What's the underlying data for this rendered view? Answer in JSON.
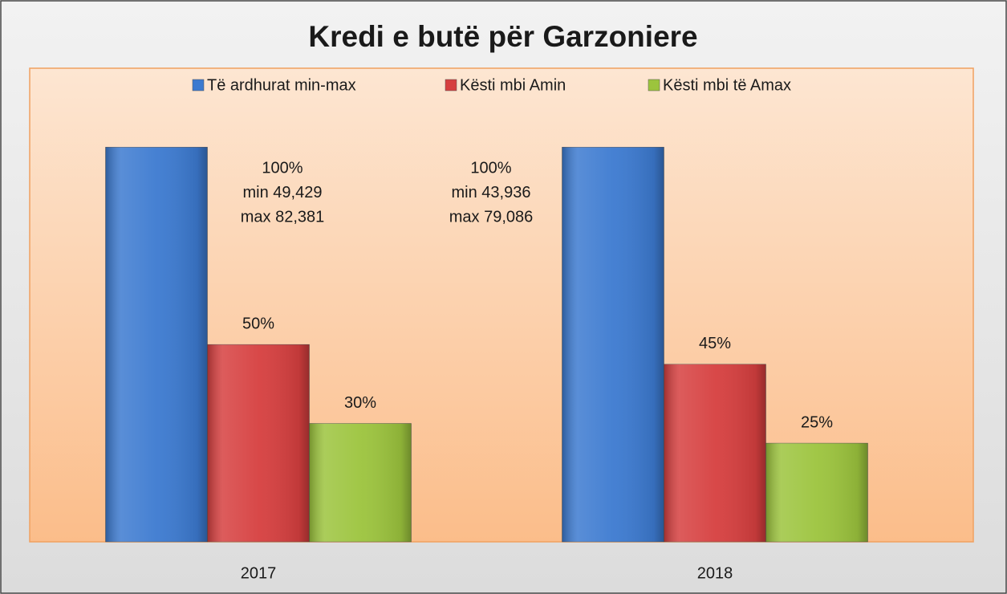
{
  "chart_data": {
    "type": "bar",
    "title": "Kredi e butë për Garzoniere",
    "categories": [
      "2017",
      "2018"
    ],
    "series": [
      {
        "name": "Të ardhurat min-max",
        "color": "#3c7ad0",
        "values": [
          100,
          100
        ],
        "value_labels": [
          [
            "100%",
            "min 49,429",
            "max 82,381"
          ],
          [
            "100%",
            "min 43,936",
            "max 79,086"
          ]
        ]
      },
      {
        "name": "Kësti mbi Amin",
        "color": "#d63f3f",
        "values": [
          50,
          45
        ],
        "value_labels": [
          "50%",
          "45%"
        ]
      },
      {
        "name": "Kësti mbi të Amax",
        "color": "#9cc43d",
        "values": [
          30,
          25
        ],
        "value_labels": [
          "30%",
          "25%"
        ]
      }
    ],
    "ylim": [
      0,
      120
    ],
    "legend": "top"
  }
}
